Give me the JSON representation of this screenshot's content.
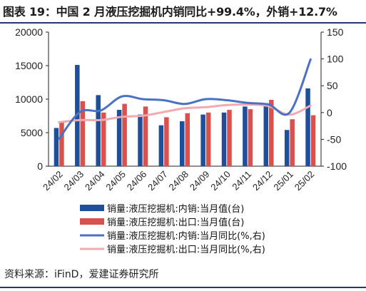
{
  "title": "图表 19：中国 2 月液压挖掘机内销同比+99.4%，外销+12.7%",
  "source": "资料来源：iFinD，爱建证券研究所",
  "colors": {
    "domestic_bar": "#1f4e9a",
    "export_bar": "#d9504c",
    "domestic_line": "#4a72c4",
    "export_line": "#f3a9b0",
    "rule": "#1f3b73"
  },
  "chart_data": {
    "type": "bar",
    "categories": [
      "24/02",
      "24/03",
      "24/04",
      "24/05",
      "24/06",
      "24/07",
      "24/08",
      "24/09",
      "24/10",
      "24/11",
      "24/12",
      "25/01",
      "25/02"
    ],
    "y_left": {
      "lim": [
        0,
        20000
      ],
      "ticks": [
        "0",
        "5000",
        "10000",
        "15000",
        "20000"
      ],
      "tick_values": [
        0,
        5000,
        10000,
        15000,
        20000
      ]
    },
    "y_right": {
      "lim": [
        -100,
        150
      ],
      "ticks": [
        "-100",
        "-50",
        "0",
        "50",
        "100",
        "150"
      ],
      "tick_values": [
        -100,
        -50,
        0,
        50,
        100,
        150
      ]
    },
    "series": [
      {
        "name": "销量:液压挖掘机:内销:当月值(台)",
        "kind": "bar",
        "axis": "left",
        "values": [
          5700,
          15100,
          10600,
          8400,
          7700,
          6100,
          6700,
          7700,
          8000,
          8900,
          9400,
          5400,
          11600
        ]
      },
      {
        "name": "销量:液压挖掘机:出口:当月值(台)",
        "kind": "bar",
        "axis": "left",
        "values": [
          6700,
          9700,
          8000,
          9300,
          8900,
          7300,
          7900,
          8000,
          8400,
          8500,
          9900,
          7000,
          7600
        ]
      },
      {
        "name": "销量:液压挖掘机:内销:当月同比(%,右)",
        "kind": "line",
        "axis": "right",
        "values": [
          -49,
          1,
          4,
          30,
          25,
          23,
          16,
          25,
          23,
          18,
          15,
          0,
          99
        ]
      },
      {
        "name": "销量:液压挖掘机:出口:当月同比(%,右)",
        "kind": "line",
        "axis": "right",
        "values": [
          -18,
          -14,
          -14,
          -8,
          -6,
          1,
          8,
          10,
          14,
          15,
          12,
          -4,
          13
        ]
      }
    ]
  }
}
